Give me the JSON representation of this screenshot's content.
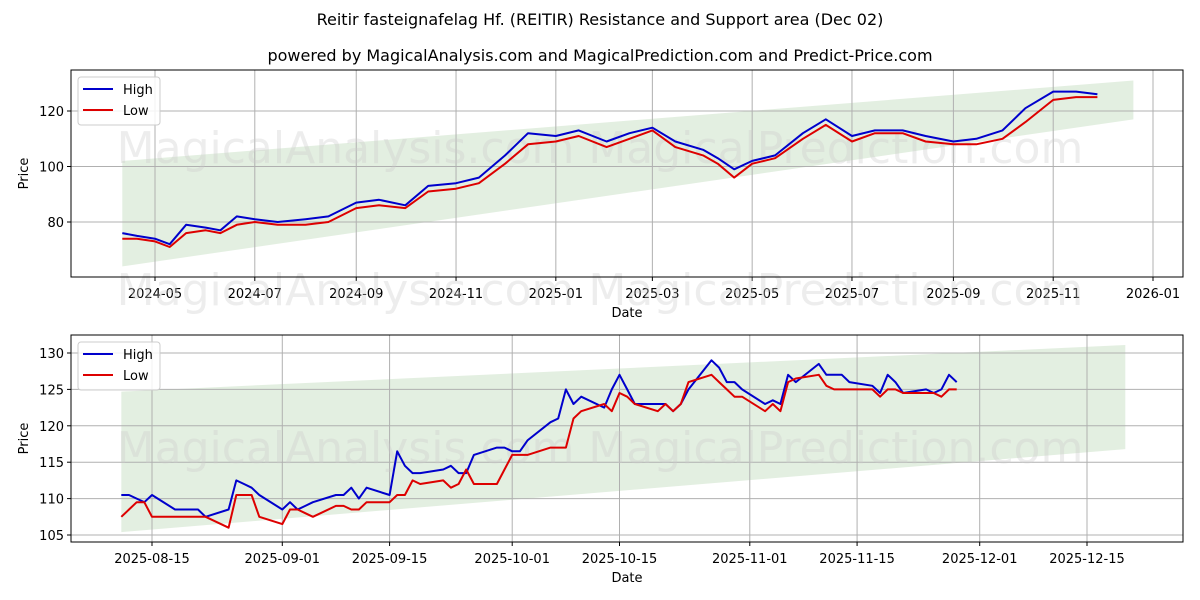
{
  "header": {
    "title": "Reitir fasteignafelag Hf. (REITIR) Resistance and Support area (Dec 02)",
    "subtitle": "powered by MagicalAnalysis.com and MagicalPrediction.com and Predict-Price.com"
  },
  "watermarks": [
    "MagicalAnalysis.com",
    "MagicalPrediction.com"
  ],
  "colors": {
    "high": "#0000cc",
    "low": "#dd0000",
    "band": "#d9ead7",
    "grid": "#b0b0b0"
  },
  "chart_data": [
    {
      "type": "line",
      "title": "Full history",
      "xlabel": "Date",
      "ylabel": "Price",
      "ylim": [
        60,
        135
      ],
      "yticks": [
        80,
        100,
        120
      ],
      "xticks": [
        "2024-05",
        "2024-07",
        "2024-09",
        "2024-11",
        "2025-01",
        "2025-03",
        "2025-05",
        "2025-07",
        "2025-09",
        "2025-11",
        "2026-01"
      ],
      "grid": true,
      "legend": [
        "High",
        "Low"
      ],
      "legend_position": "upper left",
      "band": {
        "x_start": "2024-04-11",
        "x_end": "2025-12-20",
        "upper_start": 102,
        "upper_end": 131,
        "lower_start": 64,
        "lower_end": 117
      },
      "x": [
        "2024-04-11",
        "2024-04-20",
        "2024-05-01",
        "2024-05-10",
        "2024-05-20",
        "2024-06-01",
        "2024-06-10",
        "2024-06-20",
        "2024-07-01",
        "2024-07-15",
        "2024-08-01",
        "2024-08-15",
        "2024-09-01",
        "2024-09-15",
        "2024-10-01",
        "2024-10-15",
        "2024-11-01",
        "2024-11-15",
        "2024-12-01",
        "2024-12-15",
        "2025-01-01",
        "2025-01-15",
        "2025-02-01",
        "2025-02-15",
        "2025-03-01",
        "2025-03-15",
        "2025-04-01",
        "2025-04-10",
        "2025-04-20",
        "2025-05-01",
        "2025-05-15",
        "2025-06-01",
        "2025-06-15",
        "2025-07-01",
        "2025-07-15",
        "2025-08-01",
        "2025-08-15",
        "2025-09-01",
        "2025-09-15",
        "2025-10-01",
        "2025-10-15",
        "2025-11-01",
        "2025-11-15",
        "2025-11-28"
      ],
      "series": [
        {
          "name": "High",
          "values": [
            76,
            75,
            74,
            72,
            79,
            78,
            77,
            82,
            81,
            80,
            81,
            82,
            87,
            88,
            86,
            93,
            94,
            96,
            104,
            112,
            111,
            113,
            109,
            112,
            114,
            109,
            106,
            103,
            99,
            102,
            104,
            112,
            117,
            111,
            113,
            113,
            111,
            109,
            110,
            113,
            121,
            127,
            127,
            126
          ]
        },
        {
          "name": "Low",
          "values": [
            74,
            74,
            73,
            71,
            76,
            77,
            76,
            79,
            80,
            79,
            79,
            80,
            85,
            86,
            85,
            91,
            92,
            94,
            101,
            108,
            109,
            111,
            107,
            110,
            113,
            107,
            104,
            101,
            96,
            101,
            103,
            110,
            115,
            109,
            112,
            112,
            109,
            108,
            108,
            110,
            116,
            124,
            125,
            125
          ]
        }
      ]
    },
    {
      "type": "line",
      "title": "Recent detail",
      "xlabel": "Date",
      "ylabel": "Price",
      "ylim": [
        104,
        132.5
      ],
      "yticks": [
        105,
        110,
        115,
        120,
        125,
        130
      ],
      "xticks": [
        "2025-08-15",
        "2025-09-01",
        "2025-09-15",
        "2025-10-01",
        "2025-10-15",
        "2025-11-01",
        "2025-11-15",
        "2025-12-01",
        "2025-12-15"
      ],
      "grid": true,
      "legend": [
        "High",
        "Low"
      ],
      "legend_position": "upper left",
      "band": {
        "x_start": "2025-08-11",
        "x_end": "2025-12-20",
        "upper_start": 124.7,
        "upper_end": 131.1,
        "lower_start": 105.4,
        "lower_end": 116.8
      },
      "x": [
        "2025-08-11",
        "2025-08-12",
        "2025-08-13",
        "2025-08-14",
        "2025-08-15",
        "2025-08-18",
        "2025-08-19",
        "2025-08-20",
        "2025-08-21",
        "2025-08-22",
        "2025-08-25",
        "2025-08-26",
        "2025-08-27",
        "2025-08-28",
        "2025-08-29",
        "2025-09-01",
        "2025-09-02",
        "2025-09-03",
        "2025-09-04",
        "2025-09-05",
        "2025-09-08",
        "2025-09-09",
        "2025-09-10",
        "2025-09-11",
        "2025-09-12",
        "2025-09-15",
        "2025-09-16",
        "2025-09-17",
        "2025-09-18",
        "2025-09-19",
        "2025-09-22",
        "2025-09-23",
        "2025-09-24",
        "2025-09-25",
        "2025-09-26",
        "2025-09-29",
        "2025-09-30",
        "2025-10-01",
        "2025-10-02",
        "2025-10-03",
        "2025-10-06",
        "2025-10-07",
        "2025-10-08",
        "2025-10-09",
        "2025-10-10",
        "2025-10-13",
        "2025-10-14",
        "2025-10-15",
        "2025-10-16",
        "2025-10-17",
        "2025-10-20",
        "2025-10-21",
        "2025-10-22",
        "2025-10-23",
        "2025-10-24",
        "2025-10-27",
        "2025-10-28",
        "2025-10-29",
        "2025-10-30",
        "2025-10-31",
        "2025-11-03",
        "2025-11-04",
        "2025-11-05",
        "2025-11-06",
        "2025-11-07",
        "2025-11-10",
        "2025-11-11",
        "2025-11-12",
        "2025-11-13",
        "2025-11-14",
        "2025-11-17",
        "2025-11-18",
        "2025-11-19",
        "2025-11-20",
        "2025-11-21",
        "2025-11-24",
        "2025-11-25",
        "2025-11-26",
        "2025-11-27",
        "2025-11-28"
      ],
      "series": [
        {
          "name": "High",
          "values": [
            110.5,
            110.5,
            110,
            109.5,
            110.5,
            108.5,
            108.5,
            108.5,
            108.5,
            107.5,
            108.5,
            112.5,
            112,
            111.5,
            110.5,
            108.5,
            109.5,
            108.5,
            109,
            109.5,
            110.5,
            110.5,
            111.5,
            110,
            111.5,
            110.5,
            116.5,
            114.5,
            113.5,
            113.5,
            114,
            114.5,
            113.5,
            113.5,
            116,
            117,
            117,
            116.5,
            116.5,
            118,
            120.5,
            121,
            125,
            123,
            124,
            122.5,
            125,
            127,
            125,
            123,
            123,
            123,
            122,
            123,
            125,
            129,
            128,
            126,
            126,
            125,
            123,
            123.5,
            123,
            127,
            126,
            128.5,
            127,
            127,
            127,
            126,
            125.5,
            124.5,
            127,
            126,
            124.5,
            125,
            124.5,
            125,
            127,
            126
          ]
        },
        {
          "name": "Low",
          "values": [
            107.5,
            108.5,
            109.5,
            109.5,
            107.5,
            107.5,
            107.5,
            107.5,
            107.5,
            107.5,
            106,
            110.5,
            110.5,
            110.5,
            107.5,
            106.5,
            108.5,
            108.5,
            108,
            107.5,
            109,
            109,
            108.5,
            108.5,
            109.5,
            109.5,
            110.5,
            110.5,
            112.5,
            112,
            112.5,
            111.5,
            112,
            114,
            112,
            112,
            114,
            116,
            116,
            116,
            117,
            117,
            117,
            121,
            122,
            123,
            122,
            124.5,
            124,
            123,
            122,
            123,
            122,
            123,
            126,
            127,
            126,
            125,
            124,
            124,
            122,
            123,
            122,
            126,
            126.5,
            127,
            125.5,
            125,
            125,
            125,
            125,
            124,
            125,
            125,
            124.5,
            124.5,
            124.5,
            124,
            125,
            125
          ]
        }
      ]
    }
  ]
}
